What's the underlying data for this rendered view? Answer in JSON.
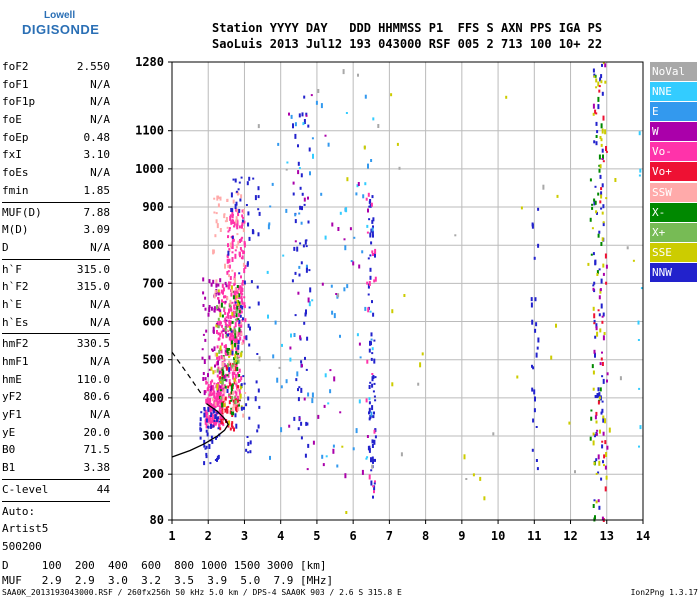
{
  "logo": {
    "line1": "Lowell",
    "line2": "DIGISONDE"
  },
  "header": {
    "line1": "Station YYYY DAY   DDD HHMMSS P1  FFS S AXN PPS IGA PS",
    "line2": "SaoLuis 2013 Jul12 193 043000 RSF 005 2 713 100 10+ 22"
  },
  "params": [
    {
      "k": "foF2",
      "v": "2.550"
    },
    {
      "k": "foF1",
      "v": "N/A"
    },
    {
      "k": "foF1p",
      "v": "N/A"
    },
    {
      "k": "foE",
      "v": "N/A"
    },
    {
      "k": "foEp",
      "v": "0.48"
    },
    {
      "k": "fxI",
      "v": "3.10"
    },
    {
      "k": "foEs",
      "v": "N/A"
    },
    {
      "k": "fmin",
      "v": "1.85"
    },
    {
      "sep": true
    },
    {
      "k": "MUF(D)",
      "v": "7.88"
    },
    {
      "k": "M(D)",
      "v": "3.09"
    },
    {
      "k": "D",
      "v": "N/A"
    },
    {
      "sep": true
    },
    {
      "k": "h`F",
      "v": "315.0"
    },
    {
      "k": "h`F2",
      "v": "315.0"
    },
    {
      "k": "h`E",
      "v": "N/A"
    },
    {
      "k": "h`Es",
      "v": "N/A"
    },
    {
      "sep": true
    },
    {
      "k": "hmF2",
      "v": "330.5"
    },
    {
      "k": "hmF1",
      "v": "N/A"
    },
    {
      "k": "hmE",
      "v": "110.0"
    },
    {
      "k": "yF2",
      "v": "80.6"
    },
    {
      "k": "yF1",
      "v": "N/A"
    },
    {
      "k": "yE",
      "v": "20.0"
    },
    {
      "k": "B0",
      "v": "71.5"
    },
    {
      "k": "B1",
      "v": "3.38"
    },
    {
      "sep": true
    },
    {
      "k": "C-level",
      "v": "44"
    },
    {
      "sep": true
    },
    {
      "k": "Auto:",
      "v": ""
    },
    {
      "k": "Artist5",
      "v": ""
    },
    {
      "k": "500200",
      "v": ""
    }
  ],
  "legend": [
    {
      "label": "NoVal",
      "color": "#a8a8a8"
    },
    {
      "label": "NNE",
      "color": "#33ccff"
    },
    {
      "label": "E",
      "color": "#3399ee"
    },
    {
      "label": "W",
      "color": "#aa00aa"
    },
    {
      "label": "Vo-",
      "color": "#ff33aa"
    },
    {
      "label": "Vo+",
      "color": "#ee1133"
    },
    {
      "label": "SSW",
      "color": "#ffaaaa"
    },
    {
      "label": "X-",
      "color": "#008800"
    },
    {
      "label": "X+",
      "color": "#77bb55"
    },
    {
      "label": "SSE",
      "color": "#cccc00"
    },
    {
      "label": "NNW",
      "color": "#2222cc"
    }
  ],
  "bottom_table": {
    "line1": "D     100  200  400  600  800 1000 1500 3000 [km]",
    "line2": "MUF   2.9  2.9  3.0  3.2  3.5  3.9  5.0  7.9 [MHz]"
  },
  "footer": {
    "left": "SAA0K_2013193043000.RSF / 260fx256h 50 kHz 5.0 km / DPS-4 SAA0K 903 / 2.6 S 315.8 E",
    "right": "Ion2Png 1.3.17"
  },
  "chart_data": {
    "type": "scatter",
    "xlim": [
      1,
      14
    ],
    "ylim": [
      80,
      1280
    ],
    "x_ticks": [
      1,
      2,
      3,
      4,
      5,
      6,
      7,
      8,
      9,
      10,
      11,
      12,
      13,
      14
    ],
    "y_ticks": [
      80,
      200,
      300,
      400,
      500,
      600,
      700,
      800,
      900,
      1000,
      1100,
      1280
    ],
    "grid": true,
    "x_units": "MHz",
    "y_units": "km",
    "traces": [
      {
        "series": "Vo-",
        "x0": 1.9,
        "x1": 2.4,
        "y0": 330,
        "y1": 450,
        "n": 160
      },
      {
        "series": "Vo-",
        "x0": 2.2,
        "x1": 2.9,
        "y0": 400,
        "y1": 700,
        "n": 180
      },
      {
        "series": "Vo-",
        "x0": 2.5,
        "x1": 3.0,
        "y0": 550,
        "y1": 900,
        "n": 140
      },
      {
        "series": "Vo+",
        "x0": 2.3,
        "x1": 2.8,
        "y0": 320,
        "y1": 500,
        "n": 60
      },
      {
        "series": "W",
        "x0": 1.8,
        "x1": 2.5,
        "y0": 420,
        "y1": 720,
        "n": 70
      },
      {
        "series": "X-",
        "x0": 2.3,
        "x1": 2.9,
        "y0": 360,
        "y1": 700,
        "n": 60
      },
      {
        "series": "X+",
        "x0": 2.2,
        "x1": 2.9,
        "y0": 380,
        "y1": 650,
        "n": 30
      },
      {
        "series": "SSW",
        "x0": 2.1,
        "x1": 3.0,
        "y0": 350,
        "y1": 950,
        "n": 90
      },
      {
        "series": "SSE",
        "x0": 2.0,
        "x1": 2.9,
        "y0": 340,
        "y1": 700,
        "n": 30
      },
      {
        "series": "NNW",
        "x0": 1.7,
        "x1": 2.3,
        "y0": 220,
        "y1": 380,
        "n": 50
      },
      {
        "series": "NNW",
        "x0": 2.5,
        "x1": 3.4,
        "y0": 250,
        "y1": 1000,
        "n": 80
      },
      {
        "series": "NNW",
        "x0": 4.3,
        "x1": 4.8,
        "y0": 250,
        "y1": 1200,
        "n": 60
      },
      {
        "series": "NNW",
        "x0": 6.4,
        "x1": 6.6,
        "y0": 140,
        "y1": 950,
        "n": 70
      },
      {
        "series": "NNW",
        "x0": 10.9,
        "x1": 11.1,
        "y0": 180,
        "y1": 900,
        "n": 25
      },
      {
        "series": "NNW",
        "x0": 12.6,
        "x1": 12.9,
        "y0": 80,
        "y1": 1280,
        "n": 60
      },
      {
        "series": "E",
        "x0": 3.5,
        "x1": 6.6,
        "y0": 200,
        "y1": 1200,
        "n": 60
      },
      {
        "series": "NNE",
        "x0": 3.5,
        "x1": 6.6,
        "y0": 200,
        "y1": 1200,
        "n": 30
      },
      {
        "series": "W",
        "x0": 4.2,
        "x1": 6.6,
        "y0": 150,
        "y1": 1200,
        "n": 40
      },
      {
        "series": "Vo-",
        "x0": 6.3,
        "x1": 6.6,
        "y0": 150,
        "y1": 950,
        "n": 20
      },
      {
        "series": "X-",
        "x0": 12.5,
        "x1": 12.9,
        "y0": 80,
        "y1": 1280,
        "n": 30
      },
      {
        "series": "SSE",
        "x0": 12.6,
        "x1": 13.0,
        "y0": 80,
        "y1": 1280,
        "n": 40
      },
      {
        "series": "Vo+",
        "x0": 12.6,
        "x1": 13.0,
        "y0": 80,
        "y1": 1280,
        "n": 25
      },
      {
        "series": "W",
        "x0": 12.6,
        "x1": 13.0,
        "y0": 80,
        "y1": 1280,
        "n": 25
      },
      {
        "series": "NNE",
        "x0": 13.8,
        "x1": 14.0,
        "y0": 250,
        "y1": 1150,
        "n": 10
      },
      {
        "series": "SSE",
        "x0": 5.5,
        "x1": 14.0,
        "y0": 100,
        "y1": 1280,
        "n": 30
      },
      {
        "series": "NoVal",
        "x0": 3.0,
        "x1": 14.0,
        "y0": 100,
        "y1": 1280,
        "n": 20
      }
    ],
    "profile_curve": [
      [
        1.0,
        245
      ],
      [
        1.5,
        262
      ],
      [
        1.9,
        280
      ],
      [
        2.25,
        300
      ],
      [
        2.45,
        315
      ],
      [
        2.55,
        330.5
      ],
      [
        2.45,
        346
      ],
      [
        2.25,
        365
      ],
      [
        1.95,
        385
      ]
    ],
    "dashed_line": [
      [
        1.0,
        520
      ],
      [
        1.45,
        460
      ],
      [
        1.85,
        405
      ]
    ]
  }
}
